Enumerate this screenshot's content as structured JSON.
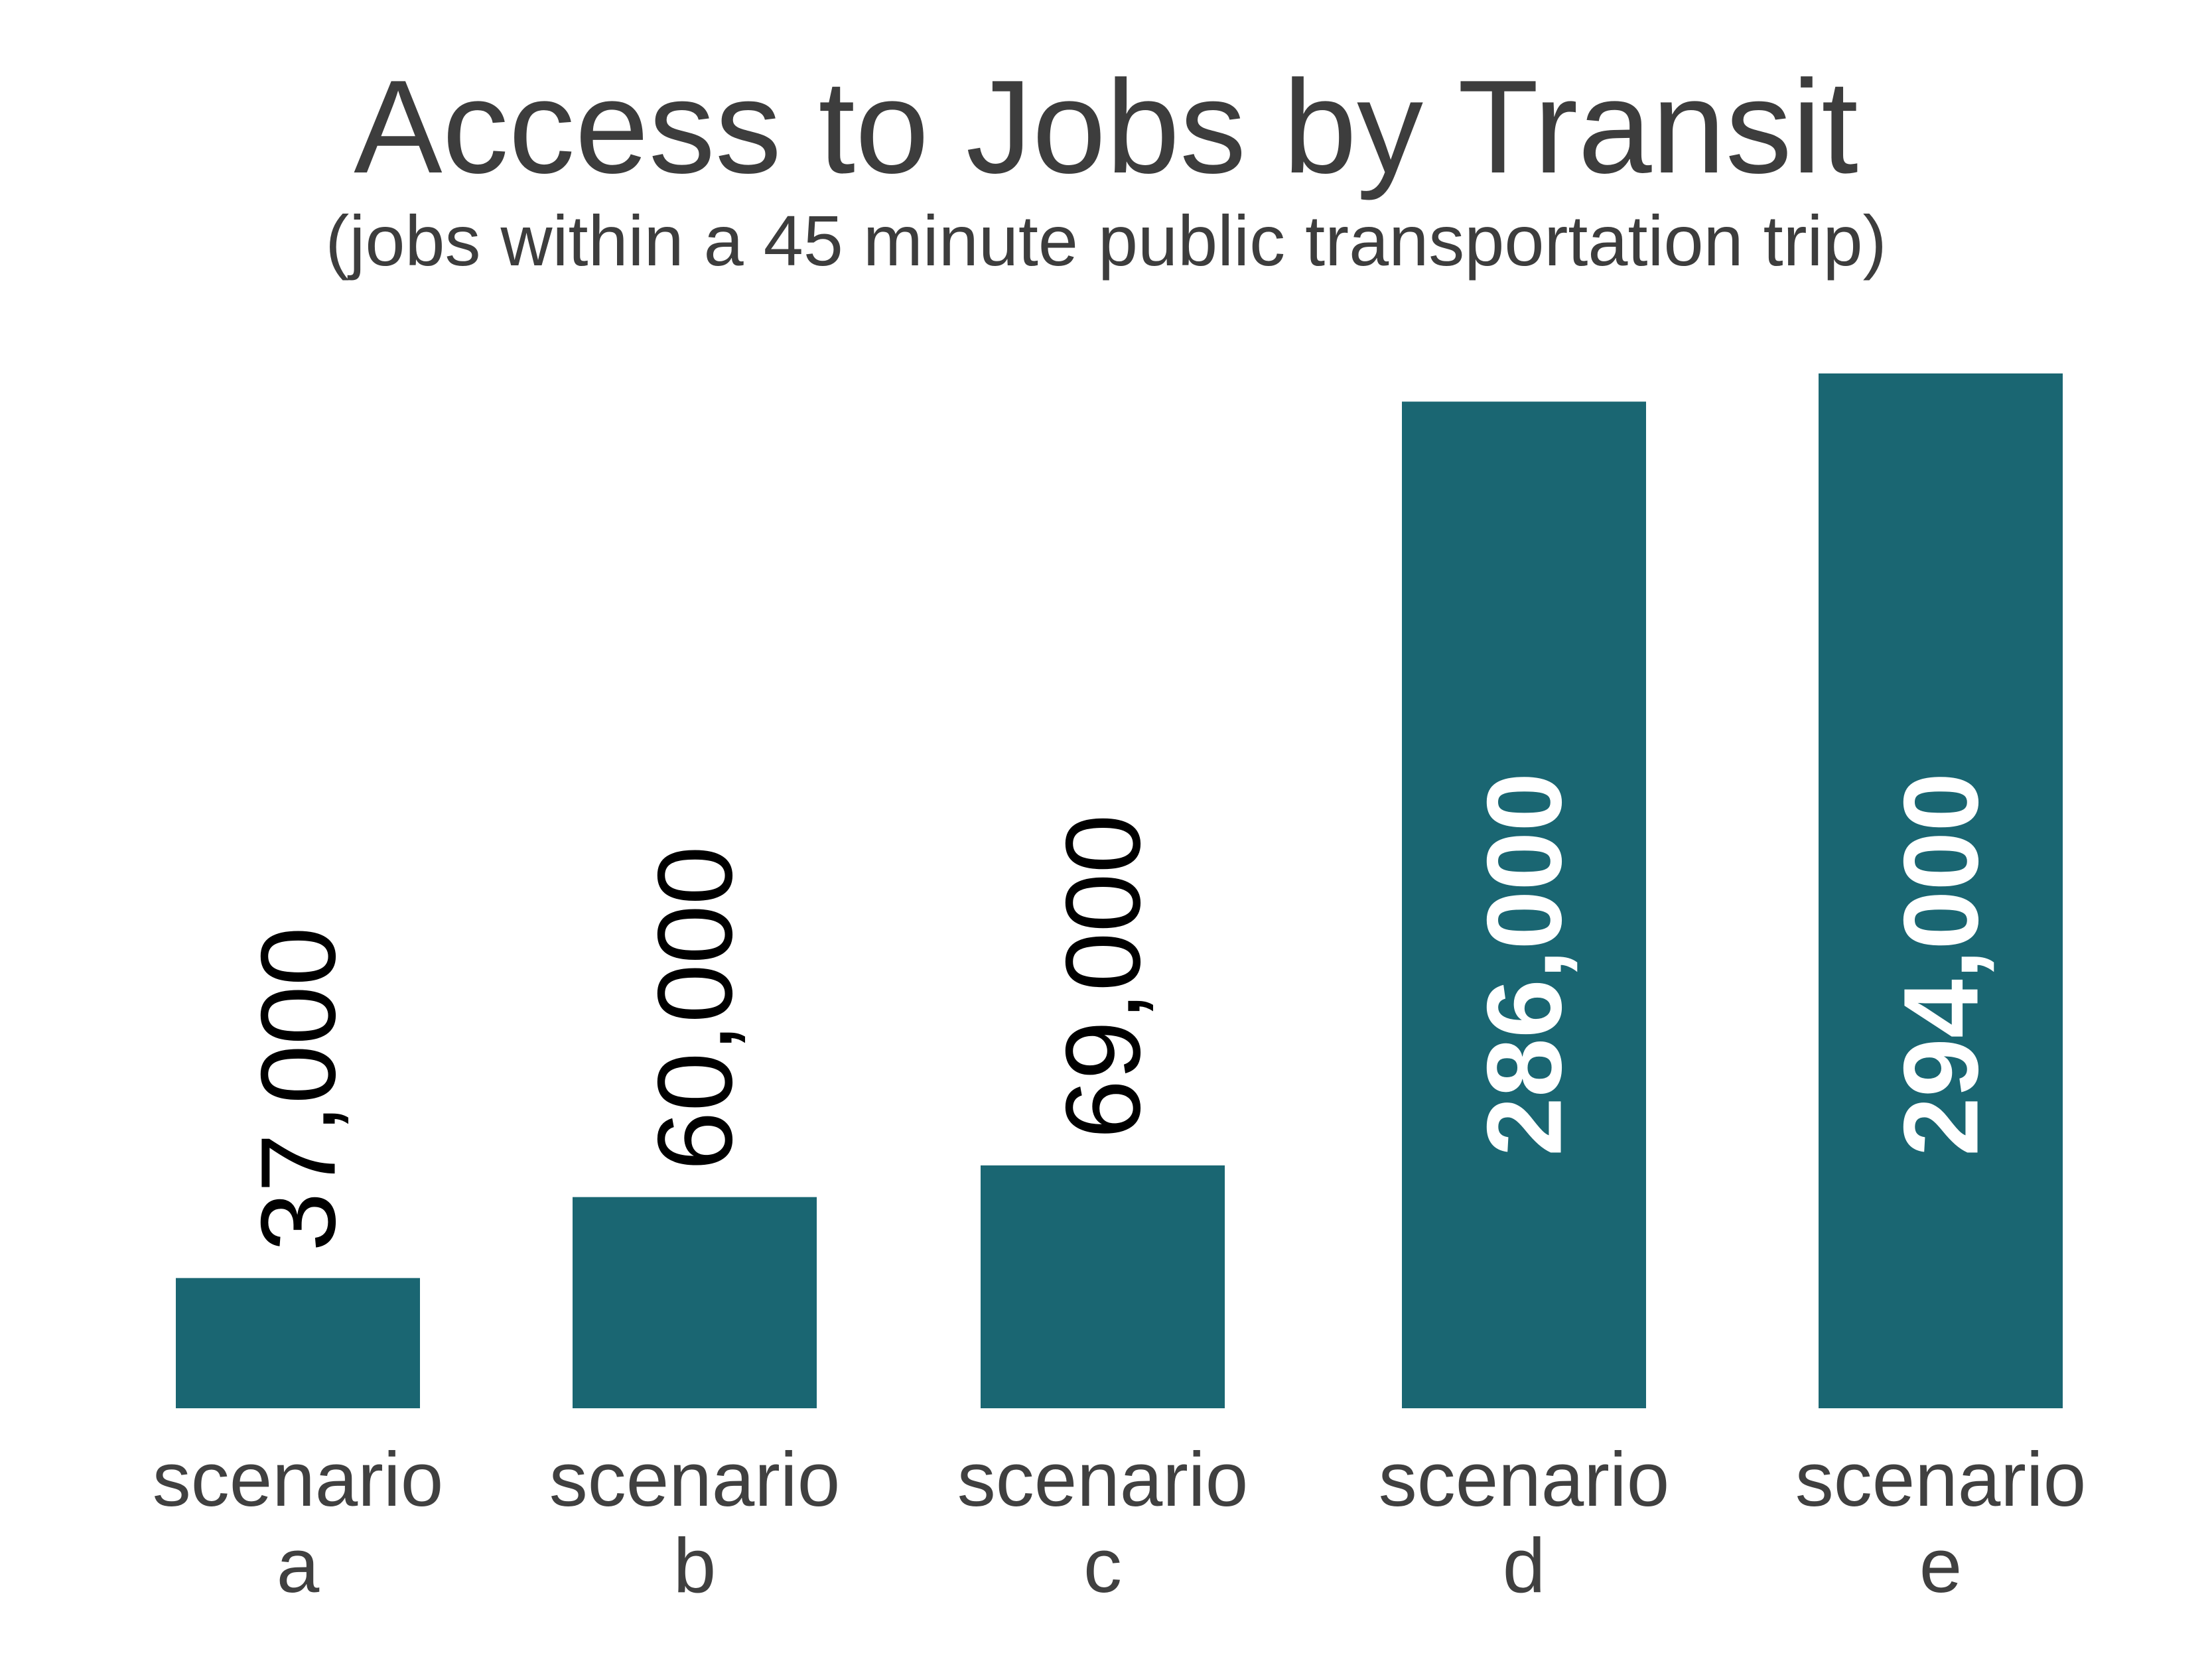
{
  "chart_data": {
    "type": "bar",
    "title": "Access to Jobs by Transit",
    "subtitle": "(jobs within a 45 minute public transportation trip)",
    "categories": [
      "scenario a",
      "scenario b",
      "scenario c",
      "scenario d",
      "scenario e"
    ],
    "category_lines": [
      [
        "scenario",
        "a"
      ],
      [
        "scenario",
        "b"
      ],
      [
        "scenario",
        "c"
      ],
      [
        "scenario",
        "d"
      ],
      [
        "scenario",
        "e"
      ]
    ],
    "values": [
      37000,
      60000,
      69000,
      286000,
      294000
    ],
    "value_labels": [
      "37,000",
      "60,000",
      "69,000",
      "286,000",
      "294,000"
    ],
    "xlabel": "",
    "ylabel": "",
    "ylim": [
      0,
      320000
    ],
    "grid": false,
    "colors": {
      "bar": "#1a6672",
      "label_outside": "#000000",
      "label_inside": "#ffffff",
      "title": "#3d3d3d"
    }
  }
}
